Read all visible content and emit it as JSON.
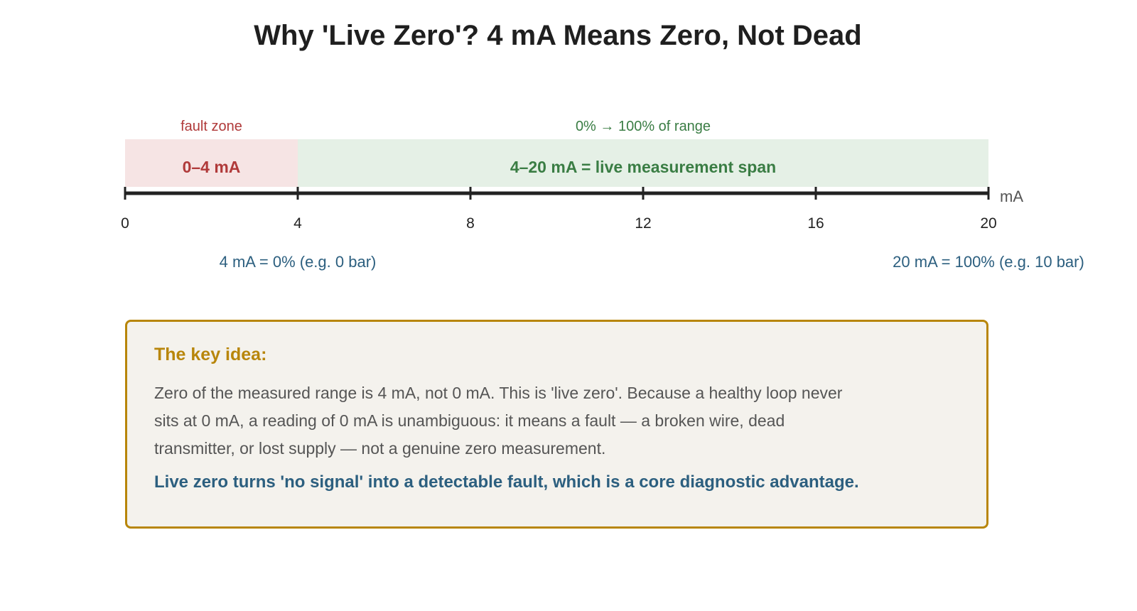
{
  "title": "Why 'Live Zero'? 4 mA Means Zero, Not Dead",
  "scale": {
    "unit": "mA",
    "min": 0,
    "max": 20,
    "ticks": [
      0,
      4,
      8,
      12,
      16,
      20
    ],
    "tick_labels": [
      "0",
      "4",
      "8",
      "12",
      "16",
      "20"
    ]
  },
  "zones": [
    {
      "name": "fault",
      "from": 0,
      "to": 4,
      "top_label": "fault zone",
      "inner_label": "0–4 mA",
      "fill": "#f6e4e4",
      "text_color": "#b03a3a"
    },
    {
      "name": "live",
      "from": 4,
      "to": 20,
      "top_label": "0% → 100% of range",
      "inner_label": "4–20 mA = live measurement span",
      "fill": "#e5f0e6",
      "text_color": "#3a7d44"
    }
  ],
  "annotations": [
    {
      "at": 4,
      "text": "4 mA = 0% (e.g. 0 bar)"
    },
    {
      "at": 20,
      "text": "20 mA = 100% (e.g. 10 bar)"
    }
  ],
  "callout": {
    "heading": "The key idea:",
    "body": "Zero of the measured range is 4 mA, not 0 mA. This is 'live zero'. Because a healthy loop never sits at 0 mA, a reading of 0 mA is unambiguous: it means a fault — a broken wire, dead transmitter, or lost supply — not a genuine zero measurement.",
    "emphasis": "Live zero turns 'no signal' into a detectable fault, which is a core diagnostic advantage."
  },
  "colors": {
    "axis": "#222222",
    "tick_label": "#222222",
    "unit_label": "#555555",
    "annotation": "#2c5f7f",
    "callout_border": "#b8860b",
    "callout_bg": "#f4f2ed"
  }
}
